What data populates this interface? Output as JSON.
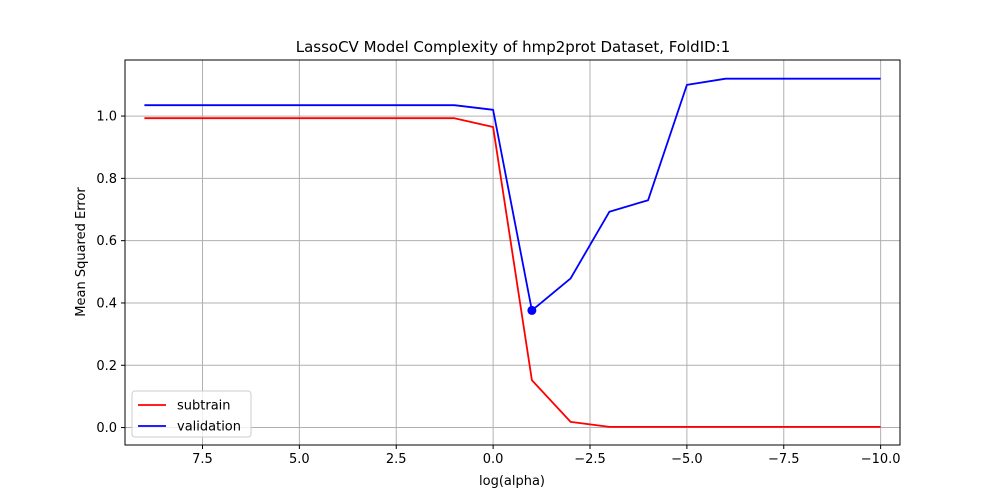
{
  "chart_data": {
    "type": "line",
    "title": "LassoCV Model Complexity of hmp2prot Dataset, FoldID:1",
    "xlabel": "log(alpha)",
    "ylabel": "Mean Squared Error",
    "x_inverted": true,
    "xlim": [
      9.5,
      -10.5
    ],
    "ylim": [
      -0.056,
      1.18
    ],
    "grid": true,
    "legend_position": "lower left",
    "xticks": [
      7.5,
      5.0,
      2.5,
      0.0,
      -2.5,
      -5.0,
      -7.5,
      -10.0
    ],
    "xtick_labels": [
      "7.5",
      "5.0",
      "2.5",
      "0.0",
      "−2.5",
      "−5.0",
      "−7.5",
      "−10.0"
    ],
    "yticks": [
      0.0,
      0.2,
      0.4,
      0.6,
      0.8,
      1.0
    ],
    "ytick_labels": [
      "0.0",
      "0.2",
      "0.4",
      "0.6",
      "0.8",
      "1.0"
    ],
    "x": [
      9,
      8,
      7,
      6,
      5,
      4,
      3,
      2,
      1,
      0,
      -1,
      -2,
      -3,
      -4,
      -5,
      -6,
      -7,
      -8,
      -9,
      -10
    ],
    "series": [
      {
        "name": "subtrain",
        "color": "#ff0000",
        "values": [
          0.993,
          0.993,
          0.993,
          0.993,
          0.993,
          0.993,
          0.993,
          0.993,
          0.993,
          0.965,
          0.152,
          0.018,
          0.002,
          0.002,
          0.002,
          0.002,
          0.002,
          0.002,
          0.002,
          0.002
        ]
      },
      {
        "name": "validation",
        "color": "#0000ff",
        "values": [
          1.035,
          1.035,
          1.035,
          1.035,
          1.035,
          1.035,
          1.035,
          1.035,
          1.035,
          1.02,
          0.376,
          0.479,
          0.693,
          0.73,
          1.1,
          1.12,
          1.12,
          1.12,
          1.12,
          1.12
        ]
      }
    ],
    "highlight_point": {
      "series": "validation",
      "x": -1,
      "y": 0.376,
      "color": "#0000ff"
    }
  }
}
